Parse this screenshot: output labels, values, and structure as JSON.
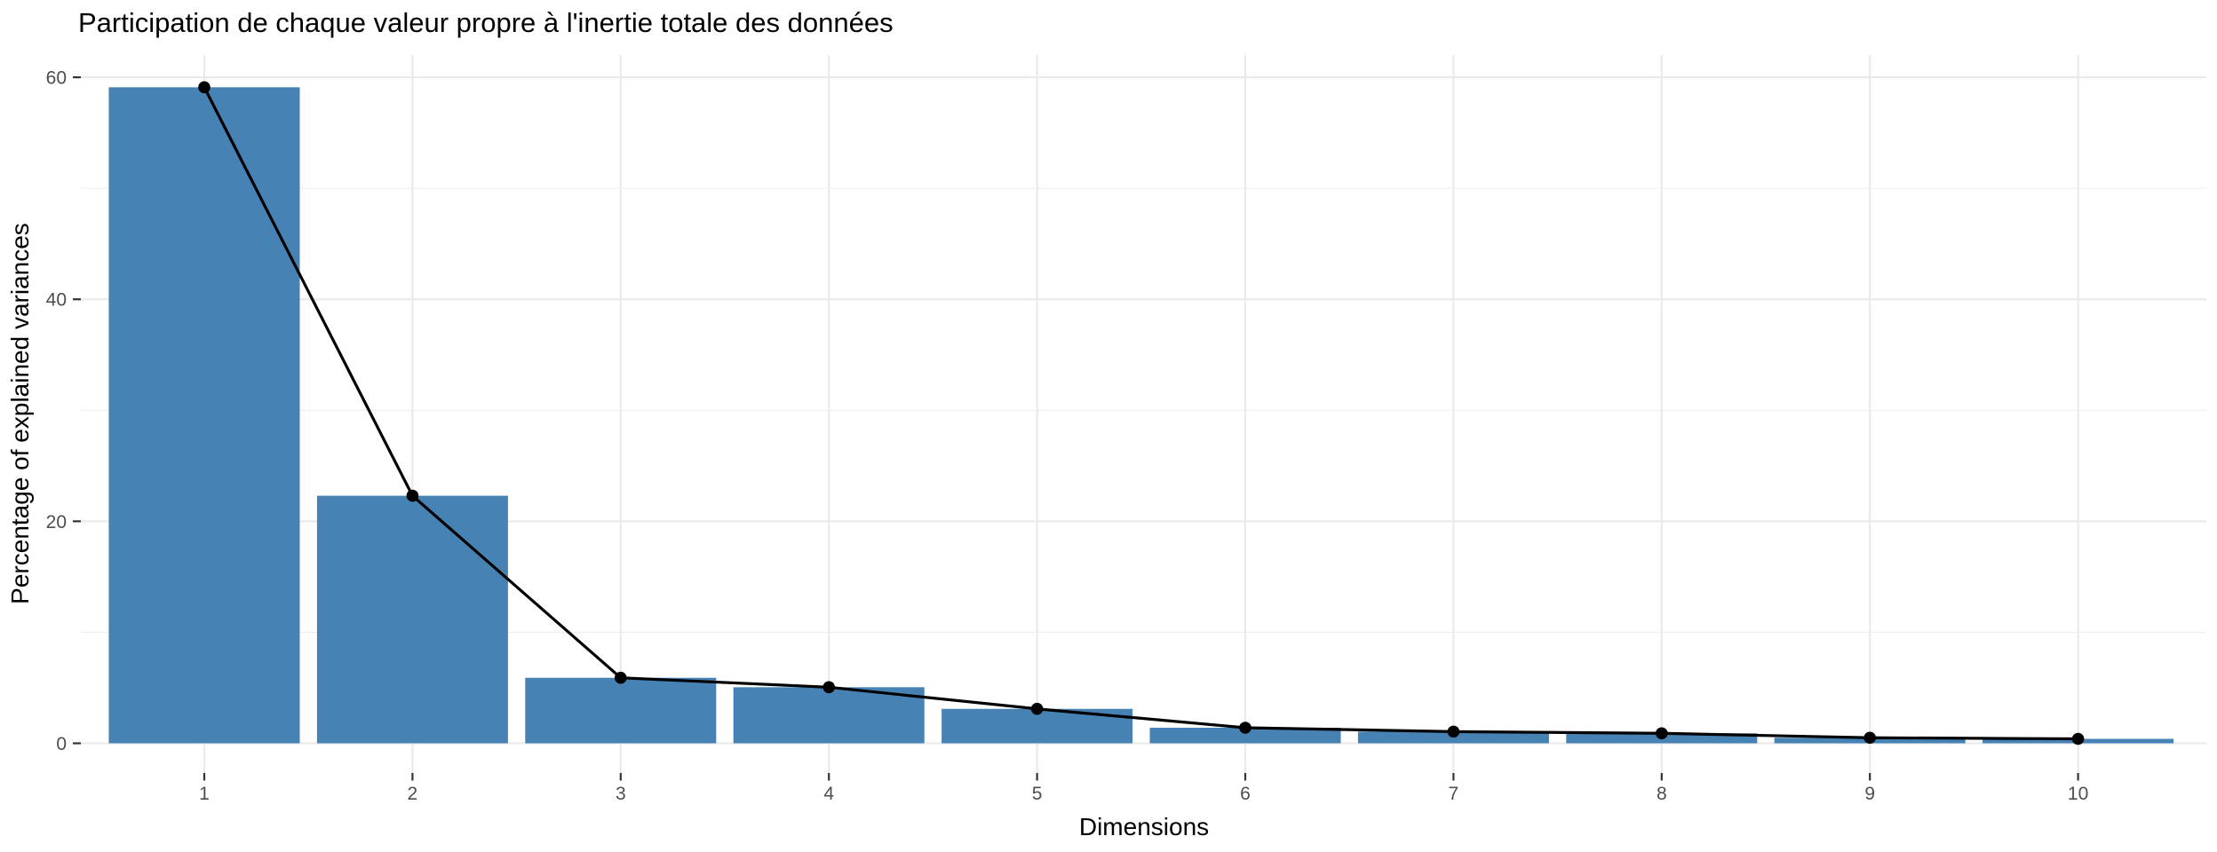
{
  "page": {
    "background": "#ffffff"
  },
  "chart_data": {
    "type": "bar",
    "overlay": "line",
    "title": "Participation de chaque valeur propre à l'inertie totale des données",
    "xlabel": "Dimensions",
    "ylabel": "Percentage of explained variances",
    "categories": [
      "1",
      "2",
      "3",
      "4",
      "5",
      "6",
      "7",
      "8",
      "9",
      "10"
    ],
    "values": [
      59.1,
      22.3,
      5.9,
      5.05,
      3.1,
      1.4,
      1.05,
      0.9,
      0.5,
      0.4
    ],
    "series": [
      {
        "name": "percentage of explained variances (bars)",
        "values": [
          59.1,
          22.3,
          5.9,
          5.05,
          3.1,
          1.4,
          1.05,
          0.9,
          0.5,
          0.4
        ]
      },
      {
        "name": "percentage of explained variances (line with points)",
        "values": [
          59.1,
          22.3,
          5.9,
          5.05,
          3.1,
          1.4,
          1.05,
          0.9,
          0.5,
          0.4
        ]
      }
    ],
    "ylim": [
      0,
      62
    ],
    "y_major_ticks": [
      0,
      20,
      40,
      60
    ],
    "y_minor_gridlines": [
      10,
      30,
      50
    ],
    "grid": true,
    "legend": false,
    "legend_position": "none",
    "colors": {
      "bar_fill": "#4682B4",
      "line": "#000000",
      "point": "#000000",
      "grid_major": "#EAEAEA",
      "grid_minor": "#F0F0F0",
      "tick_mark": "#333333",
      "tick_label": "#4D4D4D",
      "text": "#000000"
    }
  }
}
